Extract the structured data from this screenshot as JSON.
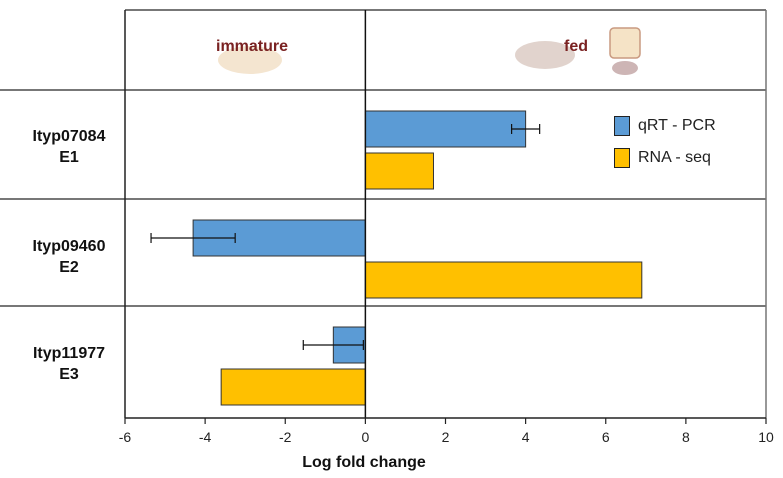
{
  "chart_data": {
    "type": "bar",
    "orientation": "horizontal",
    "panels": [
      {
        "label": "immature"
      },
      {
        "label": "fed"
      }
    ],
    "categories": [
      {
        "line1": "Ityp07084",
        "line2": "E1"
      },
      {
        "line1": "Ityp09460",
        "line2": "E2"
      },
      {
        "line1": "Ityp11977",
        "line2": "E3"
      }
    ],
    "series": [
      {
        "name": "qRT - PCR",
        "color": "#5b9bd5",
        "values": [
          4.0,
          -4.3,
          -0.8
        ],
        "errors": [
          0.35,
          1.05,
          0.75
        ]
      },
      {
        "name": "RNA - seq",
        "color": "#ffc000",
        "values": [
          1.7,
          6.9,
          -3.6
        ],
        "errors": [
          null,
          null,
          null
        ]
      }
    ],
    "xlabel": "Log fold change",
    "xlim": [
      -6,
      10
    ],
    "xticks": [
      -6,
      -4,
      -2,
      0,
      2,
      4,
      6,
      8,
      10
    ],
    "legend_position": "top-right",
    "grid": false
  }
}
